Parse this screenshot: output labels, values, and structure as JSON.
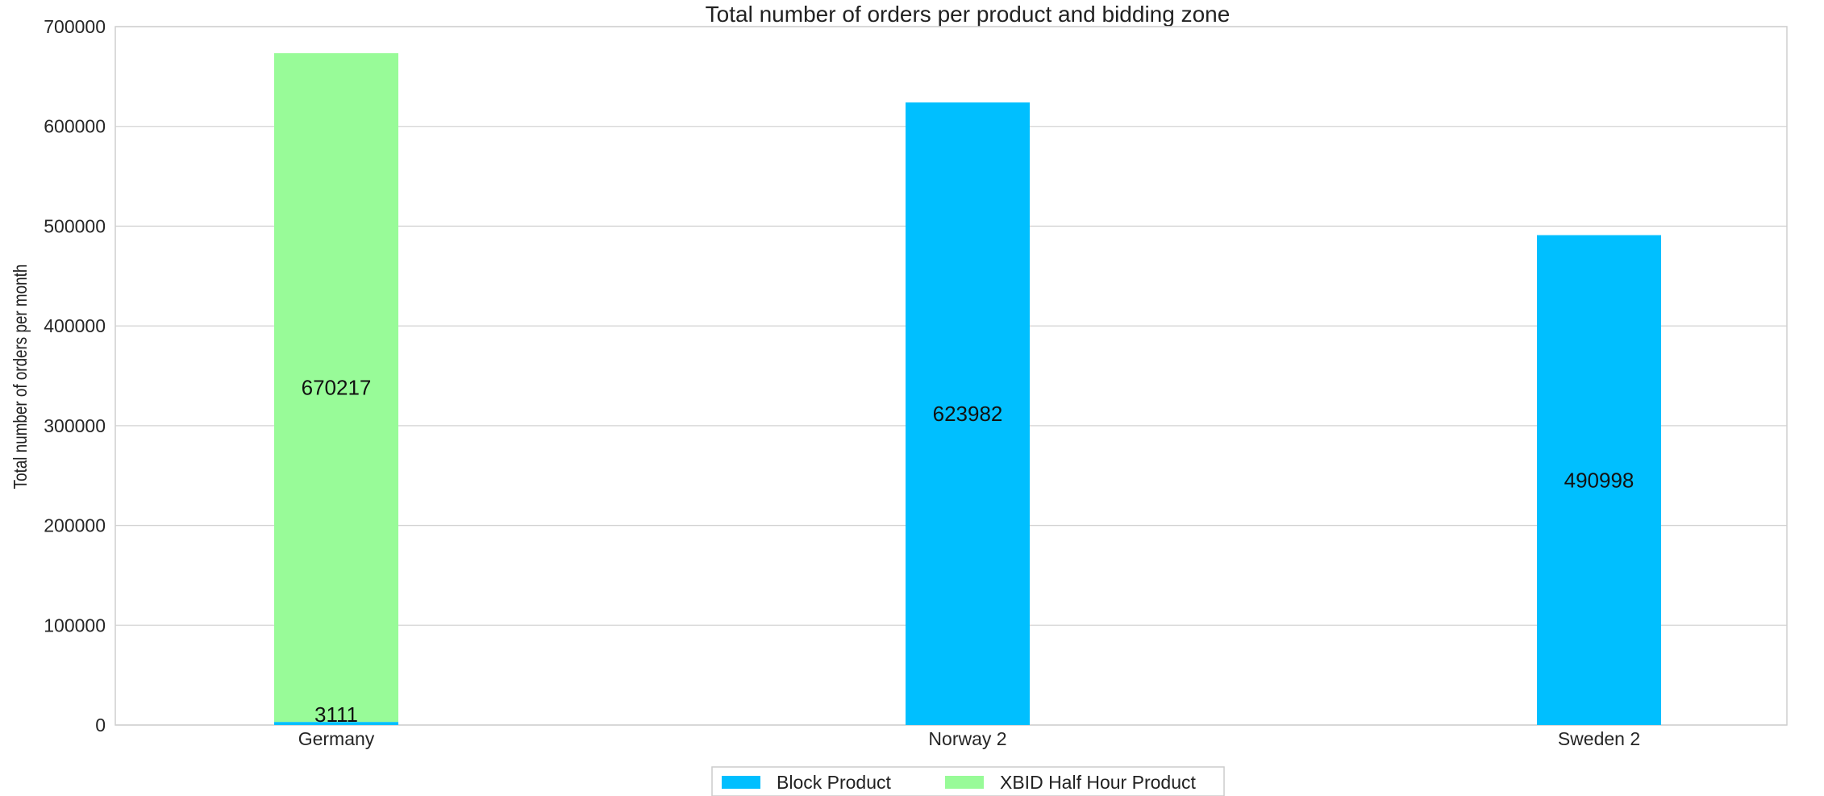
{
  "chart_data": {
    "type": "bar",
    "stacked": true,
    "title": "Total number of orders per product and bidding zone",
    "xlabel": "",
    "ylabel": "Total number of orders per month",
    "categories": [
      "Germany",
      "Norway 2",
      "Sweden 2"
    ],
    "series": [
      {
        "name": "Block Product",
        "color": "#00bfff",
        "values": [
          3111,
          623982,
          490998
        ],
        "labels": [
          "3111",
          "623982",
          "490998"
        ]
      },
      {
        "name": "XBID Half Hour Product",
        "color": "#98fb98",
        "values": [
          670217,
          0,
          0
        ],
        "labels": [
          "670217",
          "",
          ""
        ]
      }
    ],
    "ylim": [
      0,
      700000
    ],
    "yticks": [
      0,
      100000,
      200000,
      300000,
      400000,
      500000,
      600000,
      700000
    ],
    "ytick_labels": [
      "0",
      "100000",
      "200000",
      "300000",
      "400000",
      "500000",
      "600000",
      "700000"
    ],
    "grid": true,
    "legend_position": "bottom-center"
  }
}
